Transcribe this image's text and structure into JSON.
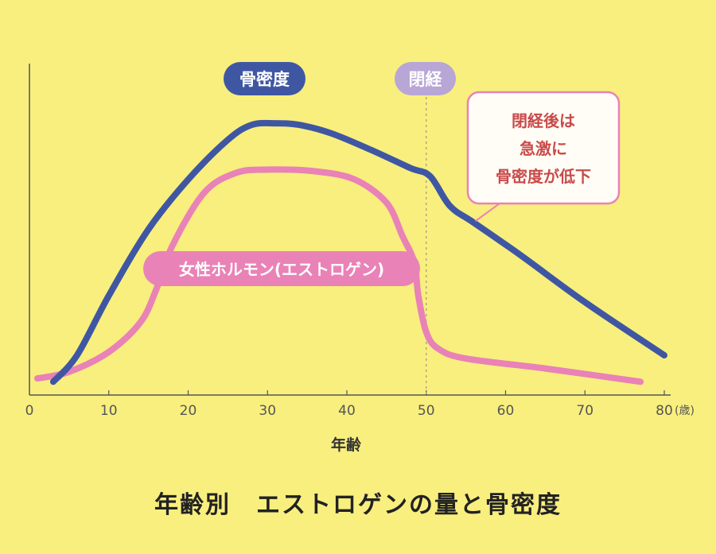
{
  "chart_data": {
    "type": "line",
    "title": "年齢別　エストロゲンの量と骨密度",
    "xlabel": "年齢",
    "x_unit": "(歳)",
    "xlim": [
      0,
      80
    ],
    "x_ticks": [
      0,
      10,
      20,
      30,
      40,
      50,
      60,
      70,
      80
    ],
    "grid": false,
    "series": [
      {
        "name": "骨密度",
        "color": "#3f57a3",
        "x": [
          3,
          6,
          10,
          15,
          20,
          25,
          28,
          31,
          34,
          38,
          43,
          48,
          50.5,
          53,
          56,
          62,
          70,
          80
        ],
        "y": [
          4,
          12,
          30,
          50,
          65,
          77,
          81.5,
          82,
          81.5,
          79,
          74,
          68.5,
          66,
          57,
          52,
          42,
          28,
          12
        ]
      },
      {
        "name": "女性ホルモン(エストロゲン)",
        "color": "#e982b7",
        "x": [
          1,
          5,
          10,
          14,
          16,
          18,
          22,
          26,
          30,
          36,
          41,
          45,
          47,
          48.5,
          49,
          50,
          51.5,
          55,
          65,
          77
        ],
        "y": [
          5,
          7,
          13,
          22,
          32,
          45,
          61,
          67,
          68,
          67.5,
          65,
          58,
          48,
          40,
          30,
          19,
          14,
          11,
          8,
          4
        ]
      }
    ],
    "annotations": {
      "menopause_label": "閉経",
      "menopause_x": 50,
      "callout": [
        "閉経後は",
        "急激に",
        "骨密度が低下"
      ],
      "callout_target_x": 56
    }
  }
}
